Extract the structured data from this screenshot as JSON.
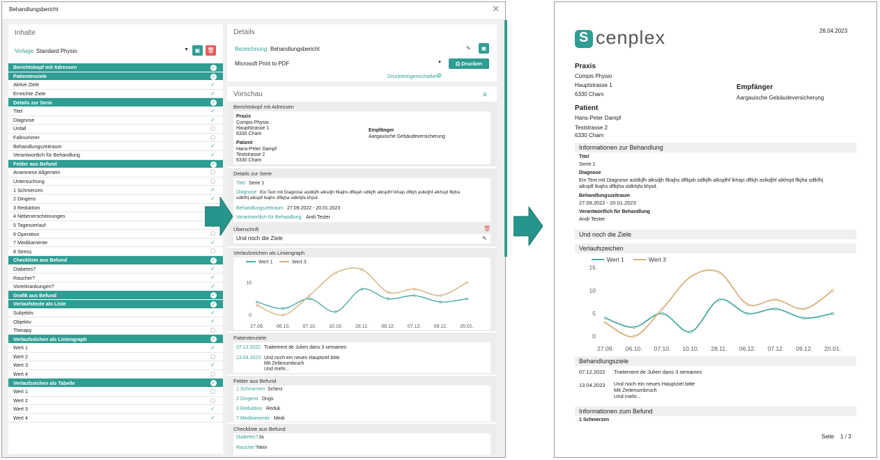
{
  "dialog": {
    "title": "Behandlungsbericht",
    "left": {
      "title": "Inhalte",
      "vorlage_label": "Vorlage",
      "vorlage_value": "Standard Physio",
      "tree": [
        {
          "label": "Berichtskopf mit Adressen",
          "group": true
        },
        {
          "label": "Patientenziele",
          "group": true
        },
        {
          "label": "Aktive Ziele",
          "checked": true
        },
        {
          "label": "Erreichte Ziele",
          "checked": true
        },
        {
          "label": "Details zur Serie",
          "group": true
        },
        {
          "label": "Titel",
          "checked": true
        },
        {
          "label": "Diagnose",
          "checked": true
        },
        {
          "label": "Unfall",
          "checked": false
        },
        {
          "label": "Fallnummer",
          "checked": false
        },
        {
          "label": "Behandlungszeitraum",
          "checked": true
        },
        {
          "label": "Verantwortlich für Behandlung",
          "checked": true
        },
        {
          "label": "Felder aus Befund",
          "group": true
        },
        {
          "label": "Anamnese Allgemein",
          "checked": false
        },
        {
          "label": "Untersuchung",
          "checked": false
        },
        {
          "label": "1 Schmerzen",
          "checked": true
        },
        {
          "label": "2 Dingens",
          "checked": true
        },
        {
          "label": "3 Reduktion",
          "checked": true
        },
        {
          "label": "4 Nebenerscheinungen",
          "checked": false
        },
        {
          "label": "5 Tagesverlauf",
          "checked": false
        },
        {
          "label": "6 Operation",
          "checked": false
        },
        {
          "label": "7 Medikamente",
          "checked": true
        },
        {
          "label": "8 Stress",
          "checked": false
        },
        {
          "label": "Checkliste aus Befund",
          "group": true
        },
        {
          "label": "Diabetes?",
          "checked": true
        },
        {
          "label": "Raucher?",
          "checked": true
        },
        {
          "label": "Vorerkrankungen?",
          "checked": true
        },
        {
          "label": "Grafik aus Befund",
          "group": true
        },
        {
          "label": "Verlaufstexte als Liste",
          "group": true
        },
        {
          "label": "Subjektiv",
          "checked": true
        },
        {
          "label": "Objektiv",
          "checked": true
        },
        {
          "label": "Therapy",
          "checked": false
        },
        {
          "label": "Verlaufzeichen als Liniengraph",
          "group": true
        },
        {
          "label": "Wert 1",
          "checked": true
        },
        {
          "label": "Wert 2",
          "checked": false
        },
        {
          "label": "Wert 3",
          "checked": true
        },
        {
          "label": "Wert 4",
          "checked": false
        },
        {
          "label": "Verlaufzeichen als Tabelle",
          "group": true
        },
        {
          "label": "Wert 1",
          "checked": false
        },
        {
          "label": "Wert 2",
          "checked": false
        },
        {
          "label": "Wert 3",
          "checked": true
        },
        {
          "label": "Wert 4",
          "checked": true
        }
      ]
    },
    "details": {
      "title": "Details",
      "bezeichnung_label": "Bezeichnung",
      "bezeichnung_value": "Behandlungsbericht",
      "printer": "Microsoft Print to PDF",
      "print_button": "Drucken",
      "printer_props": "Druckereigenschaften"
    },
    "preview": {
      "title": "Vorschau",
      "sec_header": "Berichtskopf mit Adressen",
      "praxis_label": "Praxis",
      "praxis_lines": [
        "Compis Physio",
        "Hauptstrasse 1",
        "6330 Cham"
      ],
      "empf_label": "Empfänger",
      "empf_value": "Aargauische Gebäudeversicherung",
      "patient_label": "Patient",
      "patient_lines": [
        "Hans-Peter Dampf",
        "Teststrasse 2",
        "6330 Cham"
      ],
      "sec_details": "Details zur Serie",
      "titel_label": "Titel",
      "titel_value": "Serie 1",
      "diag_label": "Diagnose",
      "diag_line1": "Ein Text mit Diagnose asldkjfh alksdjh flkajhs dflkjah sdlkjfh alksjdhf lkhajs dflkjh aslkdjhf alkhsjd flkjha",
      "diag_line2": "sdlkfhj alksjdf lkajhs dflkjha sldkhjfa khjsd.",
      "zeitraum_label": "Behandlungszeitraum",
      "zeitraum_value": "27.09.2022 - 20.01.2023",
      "verant_label": "Verantwortlich für Behandlung",
      "verant_value": "Andi Tester",
      "sec_ueber": "Überschrift",
      "ueber_value": "Und noch die Ziele",
      "sec_verlauf": "Verlaufzeichen als Liniengraph",
      "sec_ziele": "Patientenziele",
      "ziel1_date": "07.12.2022",
      "ziel1_text": "Traitement de Julien dans 3 semaines",
      "ziel2_date": "13.04.2023",
      "ziel2_lines": [
        "Und noch ein neues Hauptziel bitte",
        "Mit Zeilenumbruch",
        "Und mehr..."
      ],
      "sec_felder": "Felder aus Befund",
      "felder": [
        {
          "label": "1 Schmerzen",
          "value": "Scherz"
        },
        {
          "label": "2 Dingens",
          "value": "Dngs"
        },
        {
          "label": "3 Reduktion",
          "value": "Reduk"
        },
        {
          "label": "7 Medikamente",
          "value": "Medi"
        }
      ],
      "sec_check": "Checkliste aus Befund",
      "checks": [
        {
          "label": "Diabetes?",
          "value": "Ja"
        },
        {
          "label": "Raucher?",
          "value": "Nein"
        }
      ]
    }
  },
  "report": {
    "logo_text": "cenplex",
    "date": "28.04.2023",
    "praxis_label": "Praxis",
    "praxis_lines": [
      "Compis Physio",
      "Hauptstrasse 1",
      "6330 Cham"
    ],
    "empf_label": "Empfänger",
    "empf_value": "Aargauische Gebäudeversicherung",
    "patient_label": "Patient",
    "patient_lines": [
      "Hans-Peter Dampf",
      "Teststrasse 2",
      "6330 Cham"
    ],
    "info_header": "Informationen zur Behandlung",
    "titel_label": "Titel",
    "titel_value": "Serie 1",
    "diag_label": "Diagnose",
    "diag_line1": "Ein Text mit Diagnose asldkjfh alksdjh flkajhs dflkjah sdlkjfh alksjdhf lkhajs dflkjh aslkdjhf alkhsjd flkjha sdlkfhj",
    "diag_line2": "alksjdf lkajhs dflkjha sldkhjfa khjsd.",
    "zeitraum_label": "Behandlungszeitraum",
    "zeitraum_value": "27.09.2022 - 20.01.2023",
    "verant_label": "Verantwortlich für Behandlung",
    "verant_value": "Andi Tester",
    "ziele_header": "Und noch die Ziele",
    "verlauf_header": "Verlaufszeichen",
    "bziele_header": "Behandlungsziele",
    "ziel1_date": "07.12.2022",
    "ziel1_text": "Traitement de Julien dans 3 semaines",
    "ziel2_date": "13.04.2023",
    "ziel2_lines": [
      "Und noch ein neues Hauptziel bitte",
      "Mit Zeilenumbruch",
      "Und mehr..."
    ],
    "befund_header": "Informationen zum Befund",
    "befund_first": "1 Schmerzen",
    "seite_label": "Seite",
    "seite_value": "1 / 3"
  },
  "colors": {
    "accent": "#2e9e93",
    "danger": "#e06060",
    "series1": "#4aaaa0",
    "series2": "#d4b07a"
  },
  "chart_data": [
    {
      "type": "line",
      "categories": [
        "27.09.",
        "06.10.",
        "07.10.",
        "10.10.",
        "28.11.",
        "06.12.",
        "07.12.",
        "09.12.",
        "20.01."
      ],
      "series": [
        {
          "name": "Wert 1",
          "values": [
            4,
            2,
            5,
            1,
            8,
            5,
            6,
            4,
            5
          ]
        },
        {
          "name": "Wert 3",
          "values": [
            3,
            0,
            6,
            13,
            14,
            7,
            8,
            6,
            10
          ]
        }
      ],
      "yticks_shown": [
        0,
        10
      ],
      "ylim": [
        -2,
        16
      ],
      "legend": "top-left"
    },
    {
      "type": "line",
      "categories": [
        "27.09.",
        "06.10.",
        "07.10.",
        "10.10.",
        "28.11.",
        "06.12.",
        "07.12.",
        "09.12.",
        "20.01."
      ],
      "series": [
        {
          "name": "Wert 1",
          "values": [
            4,
            2,
            5,
            1,
            8,
            5,
            6,
            4,
            5
          ]
        },
        {
          "name": "Wert 3",
          "values": [
            3,
            0,
            6,
            13,
            14,
            7,
            8,
            6,
            10
          ]
        }
      ],
      "yticks_shown": [
        0,
        5,
        10,
        15
      ],
      "ylim": [
        -1,
        16
      ],
      "legend": "top-left"
    }
  ]
}
